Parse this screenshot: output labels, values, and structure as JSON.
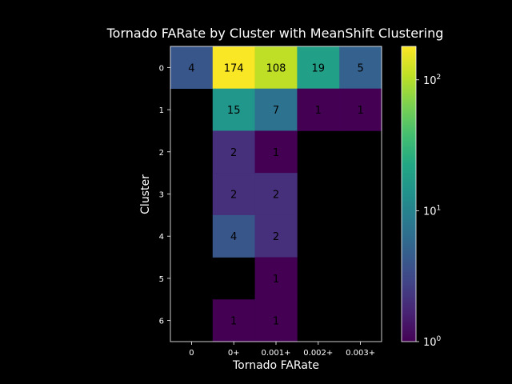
{
  "chart_data": {
    "type": "heatmap",
    "title": "Tornado FARate by Cluster with MeanShift Clustering",
    "xlabel": "Tornado FARate",
    "ylabel": "Cluster",
    "x_categories": [
      "0",
      "0+",
      "0.001+",
      "0.002+",
      "0.003+"
    ],
    "y_categories": [
      "0",
      "1",
      "2",
      "3",
      "4",
      "5",
      "6"
    ],
    "values": [
      [
        4,
        174,
        108,
        19,
        5
      ],
      [
        null,
        15,
        7,
        1,
        1
      ],
      [
        null,
        2,
        1,
        null,
        null
      ],
      [
        null,
        2,
        2,
        null,
        null
      ],
      [
        null,
        4,
        2,
        null,
        null
      ],
      [
        null,
        null,
        1,
        null,
        null
      ],
      [
        null,
        1,
        1,
        null,
        null
      ]
    ],
    "colorscale": "viridis",
    "color_scale_type": "log",
    "colorbar_range": [
      1,
      180
    ],
    "colorbar_ticks": [
      {
        "value": 1,
        "base": "10",
        "exp": "0"
      },
      {
        "value": 10,
        "base": "10",
        "exp": "1"
      },
      {
        "value": 100,
        "base": "10",
        "exp": "2"
      }
    ],
    "missing_color": "#000000",
    "background": "#000000",
    "text_color": "#ffffff"
  }
}
